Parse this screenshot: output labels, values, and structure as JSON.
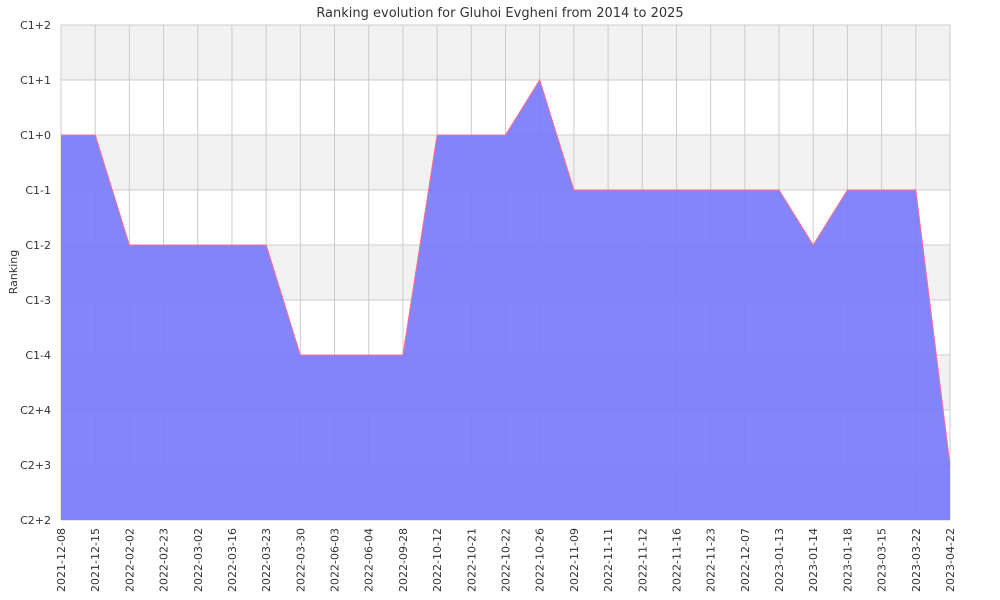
{
  "chart_data": {
    "type": "area",
    "title": "Ranking evolution for Gluhoi Evgheni from 2014 to 2025",
    "xlabel": "",
    "ylabel": "Ranking",
    "y_ticks": [
      "C2+2",
      "C2+3",
      "C2+4",
      "C1-4",
      "C1-3",
      "C1-2",
      "C1-1",
      "C1+0",
      "C1+1",
      "C1+2"
    ],
    "x": [
      "2021-12-08",
      "2021-12-15",
      "2022-02-02",
      "2022-02-23",
      "2022-03-02",
      "2022-03-16",
      "2022-03-23",
      "2022-03-30",
      "2022-06-03",
      "2022-06-04",
      "2022-09-28",
      "2022-10-12",
      "2022-10-21",
      "2022-10-22",
      "2022-10-26",
      "2022-11-09",
      "2022-11-11",
      "2022-11-12",
      "2022-11-16",
      "2022-11-23",
      "2022-12-07",
      "2023-01-13",
      "2023-01-14",
      "2023-01-18",
      "2023-03-15",
      "2023-03-22",
      "2023-04-22"
    ],
    "series": [
      {
        "values": [
          "C1+0",
          "C1+0",
          "C1-2",
          "C1-2",
          "C1-2",
          "C1-2",
          "C1-2",
          "C1-4",
          "C1-4",
          "C1-4",
          "C1-4",
          "C1+0",
          "C1+0",
          "C1+0",
          "C1+1",
          "C1-1",
          "C1-1",
          "C1-1",
          "C1-1",
          "C1-1",
          "C1-1",
          "C1-1",
          "C1-2",
          "C1-1",
          "C1-1",
          "C1-1",
          "C2+3"
        ]
      }
    ],
    "grid": true,
    "colors": {
      "fill": "#7b7bfb",
      "line": "#ff6b8a",
      "band": "#f2f2f2",
      "grid": "#cccccc"
    }
  }
}
